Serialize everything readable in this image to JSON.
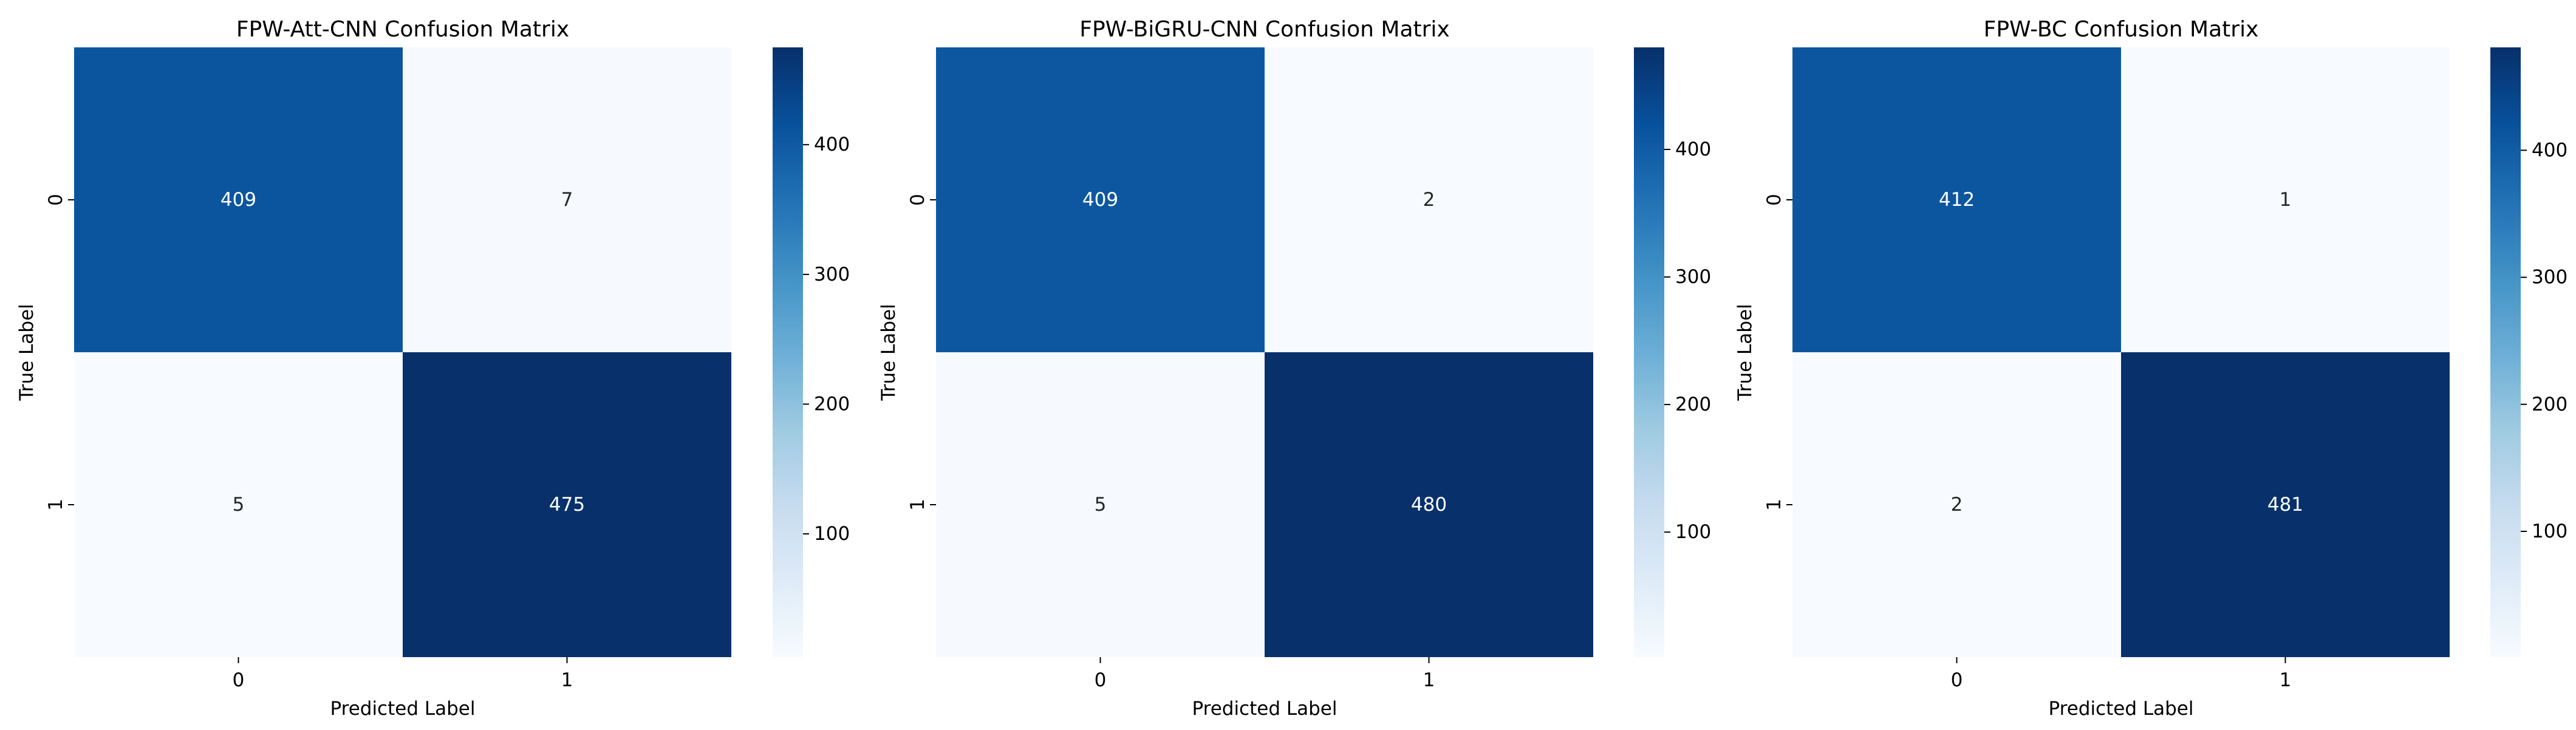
{
  "chart_data": [
    {
      "type": "heatmap",
      "title": "FPW-Att-CNN Confusion Matrix",
      "xlabel": "Predicted Label",
      "ylabel": "True Label",
      "x_ticks": [
        "0",
        "1"
      ],
      "y_ticks": [
        "0",
        "1"
      ],
      "values": [
        [
          409,
          7
        ],
        [
          5,
          475
        ]
      ],
      "colormap": "Blues",
      "color_range": [
        5,
        475
      ],
      "colorbar_ticks": [
        100,
        200,
        300,
        400
      ]
    },
    {
      "type": "heatmap",
      "title": "FPW-BiGRU-CNN Confusion Matrix",
      "xlabel": "Predicted Label",
      "ylabel": "True Label",
      "x_ticks": [
        "0",
        "1"
      ],
      "y_ticks": [
        "0",
        "1"
      ],
      "values": [
        [
          409,
          2
        ],
        [
          5,
          480
        ]
      ],
      "colormap": "Blues",
      "color_range": [
        2,
        480
      ],
      "colorbar_ticks": [
        100,
        200,
        300,
        400
      ]
    },
    {
      "type": "heatmap",
      "title": "FPW-BC Confusion Matrix",
      "xlabel": "Predicted Label",
      "ylabel": "True Label",
      "x_ticks": [
        "0",
        "1"
      ],
      "y_ticks": [
        "0",
        "1"
      ],
      "values": [
        [
          412,
          1
        ],
        [
          2,
          481
        ]
      ],
      "colormap": "Blues",
      "color_range": [
        1,
        481
      ],
      "colorbar_ticks": [
        100,
        200,
        300,
        400
      ]
    }
  ]
}
